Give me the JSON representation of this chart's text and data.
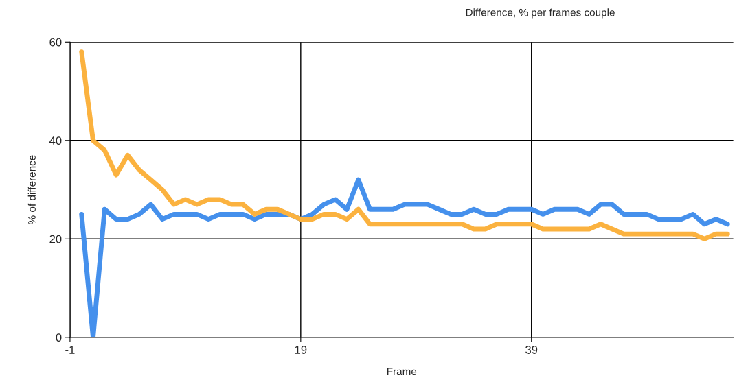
{
  "chart_data": {
    "type": "line",
    "title": "Difference, % per frames couple",
    "xlabel": "Frame",
    "ylabel": "% of difference",
    "x": [
      0,
      1,
      2,
      3,
      4,
      5,
      6,
      7,
      8,
      9,
      10,
      11,
      12,
      13,
      14,
      15,
      16,
      17,
      18,
      19,
      20,
      21,
      22,
      23,
      24,
      25,
      26,
      27,
      28,
      29,
      30,
      31,
      32,
      33,
      34,
      35,
      36,
      37,
      38,
      39,
      40,
      41,
      42,
      43,
      44,
      45,
      46,
      47,
      48,
      49,
      50,
      51,
      52,
      53,
      54,
      55,
      56
    ],
    "series": [
      {
        "color": "#4590ec",
        "values": [
          25,
          0,
          26,
          24,
          24,
          25,
          27,
          24,
          25,
          25,
          25,
          24,
          25,
          25,
          25,
          24,
          25,
          25,
          25,
          24,
          25,
          27,
          28,
          26,
          32,
          26,
          26,
          26,
          27,
          27,
          27,
          26,
          25,
          25,
          26,
          25,
          25,
          26,
          26,
          26,
          25,
          26,
          26,
          26,
          25,
          27,
          27,
          25,
          25,
          25,
          24,
          24,
          24,
          25,
          23,
          24,
          23
        ]
      },
      {
        "color": "#fbb23f",
        "values": [
          58,
          40,
          38,
          33,
          37,
          34,
          32,
          30,
          27,
          28,
          27,
          28,
          28,
          27,
          27,
          25,
          26,
          26,
          25,
          24,
          24,
          25,
          25,
          24,
          26,
          23,
          23,
          23,
          23,
          23,
          23,
          23,
          23,
          23,
          22,
          22,
          23,
          23,
          23,
          23,
          22,
          22,
          22,
          22,
          22,
          23,
          22,
          21,
          21,
          21,
          21,
          21,
          21,
          21,
          20,
          21,
          21
        ]
      }
    ],
    "xlim": [
      -1,
      56.5
    ],
    "xticks": [
      -1,
      19,
      39
    ],
    "ylim": [
      0,
      60
    ],
    "yticks": [
      0,
      20,
      40,
      60
    ],
    "grid": true,
    "line_style": "solid",
    "marker": "none"
  }
}
